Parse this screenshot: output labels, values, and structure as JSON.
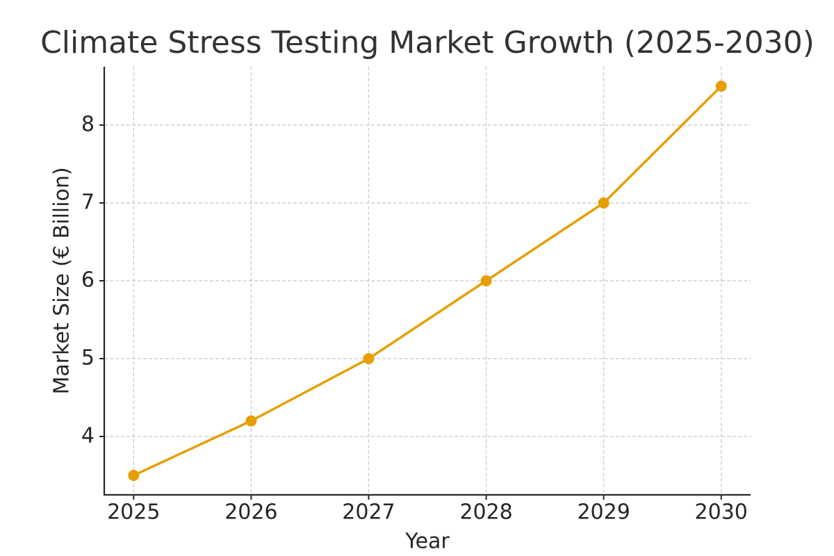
{
  "chart_data": {
    "type": "line",
    "title": "Climate Stress Testing Market Growth (2025-2030)",
    "x_label": "Year",
    "y_label": "Market Size (€ Billion)",
    "x": [
      2025,
      2026,
      2027,
      2028,
      2029,
      2030
    ],
    "values": [
      3.5,
      4.2,
      5,
      6,
      7,
      8.5
    ],
    "color": "#e69f00",
    "xlim": [
      2024.75,
      2030.25
    ],
    "xticks": [
      2025,
      2026,
      2027,
      2028,
      2029,
      2030
    ],
    "ylim": [
      3.25,
      8.75
    ],
    "yticks": [
      4,
      5,
      6,
      7,
      8
    ],
    "grid": true
  }
}
